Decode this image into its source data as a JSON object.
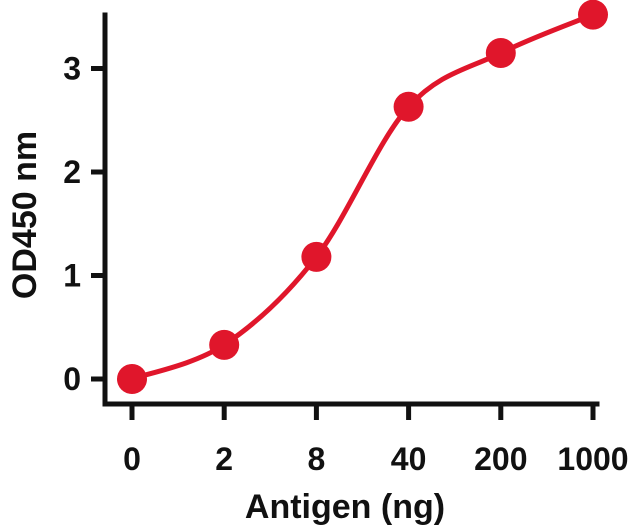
{
  "chart_data": {
    "type": "scatter",
    "title": "",
    "xlabel": "Antigen (ng)",
    "ylabel": "OD450 nm",
    "categories": [
      "0",
      "2",
      "8",
      "40",
      "200",
      "1000"
    ],
    "ylim": [
      -0.2,
      3.5
    ],
    "yticks": [
      "0",
      "1",
      "2",
      "3"
    ],
    "grid": false,
    "legend": "none",
    "series": [
      {
        "values": [
          0.0,
          0.33,
          1.18,
          2.63,
          3.15,
          3.52
        ],
        "color": "#e0162b",
        "marker": "circle",
        "fit": "sigmoidal-curve"
      }
    ]
  }
}
